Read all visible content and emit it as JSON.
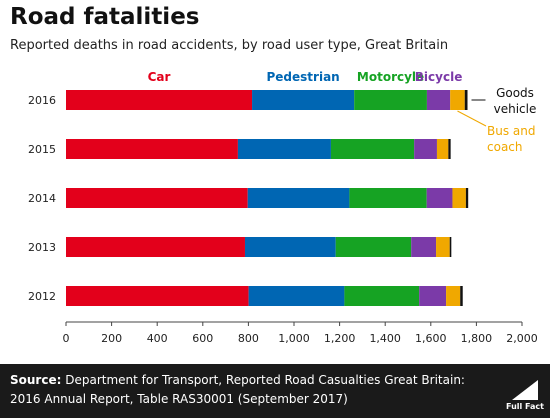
{
  "chart_data": {
    "type": "bar",
    "orientation": "horizontal",
    "stacked": true,
    "title": "Road fatalities",
    "subtitle": "Reported deaths in road accidents, by road user type, Great Britain",
    "categories": [
      "2016",
      "2015",
      "2014",
      "2013",
      "2012"
    ],
    "series": [
      {
        "name": "Car",
        "color": "#e3001b",
        "values": [
          816,
          754,
          797,
          785,
          801
        ]
      },
      {
        "name": "Pedestrian",
        "color": "#0066b3",
        "values": [
          448,
          408,
          446,
          398,
          420
        ]
      },
      {
        "name": "Motorcyle",
        "color": "#16a323",
        "values": [
          319,
          365,
          339,
          331,
          328
        ]
      },
      {
        "name": "Bicycle",
        "color": "#7b3aa8",
        "values": [
          102,
          100,
          113,
          109,
          118
        ]
      },
      {
        "name": "Bus and coach",
        "color": "#f0a800",
        "values": [
          64,
          50,
          59,
          60,
          62
        ]
      },
      {
        "name": "Goods vehicle",
        "color": "#111111",
        "values": [
          12,
          10,
          10,
          7,
          11
        ]
      }
    ],
    "xlim": [
      0,
      2000
    ],
    "xticks": [
      "0",
      "200",
      "400",
      "600",
      "800",
      "1,000",
      "1,200",
      "1,400",
      "1,600",
      "1,800",
      "2,000"
    ],
    "xtick_values": [
      0,
      200,
      400,
      600,
      800,
      1000,
      1200,
      1400,
      1600,
      1800,
      2000
    ],
    "grid": false,
    "legend": "labels above first bar"
  },
  "labels": {
    "goods_vehicle_line1": "Goods",
    "goods_vehicle_line2": "vehicle",
    "bus_line1": "Bus and",
    "bus_line2": "coach"
  },
  "footer": {
    "source_label": "Source:",
    "source_text": "Department for Transport, Reported Road Casualties Great Britain: 2016 Annual Report, Table RAS30001 (September 2017)",
    "logo_text": "Full Fact"
  }
}
